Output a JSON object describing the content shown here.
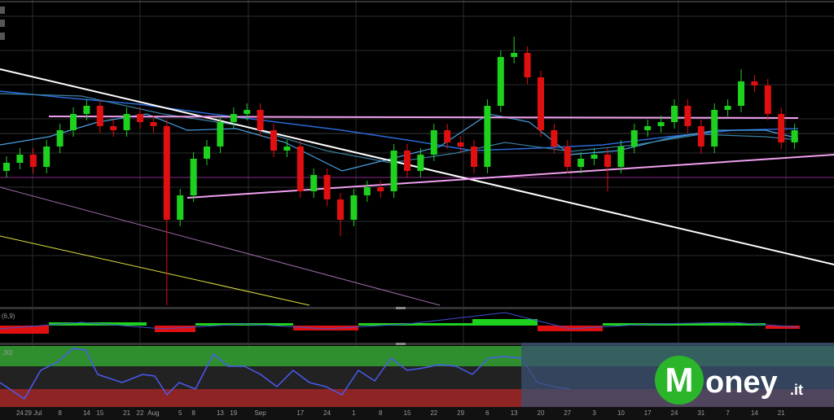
{
  "chart_data": {
    "type": "candlestick",
    "categories": [
      null,
      "24",
      "29 Jul",
      null,
      "8",
      null,
      "14",
      "15",
      null,
      "21",
      "22",
      "Aug",
      null,
      "5",
      "8",
      null,
      "13",
      "19",
      null,
      "Sep",
      null,
      null,
      "17",
      null,
      "24",
      null,
      "1",
      null,
      "8",
      null,
      "15",
      null,
      "22",
      null,
      "29",
      null,
      "6",
      null,
      "13",
      null,
      "20",
      null,
      "27",
      null,
      "3",
      null,
      "10",
      null,
      "17",
      null,
      "24",
      null,
      "31",
      null,
      "7",
      null,
      "14",
      null,
      "21",
      null
    ],
    "open": [
      165,
      175,
      185,
      170,
      195,
      215,
      235,
      245,
      220,
      215,
      235,
      225,
      220,
      105,
      135,
      180,
      195,
      225,
      235,
      240,
      215,
      190,
      195,
      140,
      160,
      130,
      105,
      135,
      145,
      140,
      190,
      165,
      185,
      215,
      200,
      195,
      170,
      245,
      305,
      310,
      280,
      215,
      195,
      170,
      180,
      185,
      170,
      195,
      215,
      220,
      225,
      245,
      220,
      195,
      240,
      245,
      275,
      270,
      235,
      200
    ],
    "high": [
      183,
      193,
      193,
      203,
      223,
      243,
      253,
      253,
      228,
      243,
      243,
      233,
      228,
      143,
      188,
      203,
      233,
      243,
      248,
      248,
      223,
      203,
      203,
      168,
      168,
      138,
      143,
      153,
      153,
      198,
      198,
      193,
      223,
      223,
      208,
      203,
      253,
      313,
      330,
      318,
      288,
      223,
      203,
      188,
      193,
      193,
      203,
      223,
      228,
      233,
      253,
      253,
      228,
      248,
      253,
      290,
      283,
      278,
      243,
      223
    ],
    "low": [
      157,
      167,
      162,
      162,
      187,
      207,
      227,
      212,
      207,
      207,
      217,
      212,
      0,
      97,
      127,
      172,
      187,
      217,
      227,
      207,
      182,
      182,
      132,
      132,
      122,
      85,
      97,
      127,
      132,
      132,
      157,
      157,
      177,
      192,
      187,
      162,
      162,
      237,
      297,
      272,
      207,
      187,
      162,
      162,
      172,
      140,
      162,
      187,
      207,
      212,
      217,
      212,
      187,
      187,
      232,
      237,
      262,
      227,
      192,
      192
    ],
    "close": [
      175,
      185,
      170,
      195,
      215,
      235,
      245,
      220,
      215,
      235,
      225,
      220,
      105,
      135,
      180,
      195,
      225,
      235,
      240,
      215,
      190,
      195,
      140,
      160,
      130,
      105,
      135,
      145,
      140,
      190,
      165,
      185,
      215,
      200,
      195,
      170,
      245,
      305,
      310,
      280,
      215,
      195,
      170,
      180,
      185,
      170,
      195,
      215,
      220,
      225,
      245,
      220,
      195,
      240,
      245,
      275,
      270,
      235,
      200,
      215
    ],
    "up_color": "#1fd11f",
    "down_color": "#e01010",
    "ylim": [
      0,
      375
    ]
  },
  "panels": {
    "macd_label": "(6,9)",
    "rsi_label": ",30)"
  },
  "logo": {
    "mark": "M",
    "text": "oney",
    "suffix": ".it"
  }
}
